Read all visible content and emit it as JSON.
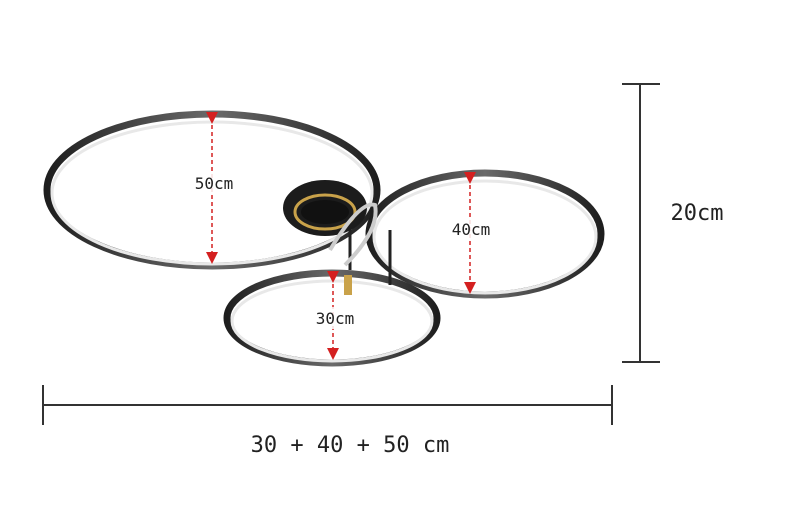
{
  "dimensions": {
    "large_ring": "50cm",
    "medium_ring": "40cm",
    "small_ring": "30cm",
    "height": "20cm",
    "total_width": "30 + 40 + 50 cm"
  },
  "colors": {
    "ring": "#2a2a2a",
    "arrow": "#d42020",
    "accent": "#c9a24a",
    "dimension_line": "#333333"
  }
}
